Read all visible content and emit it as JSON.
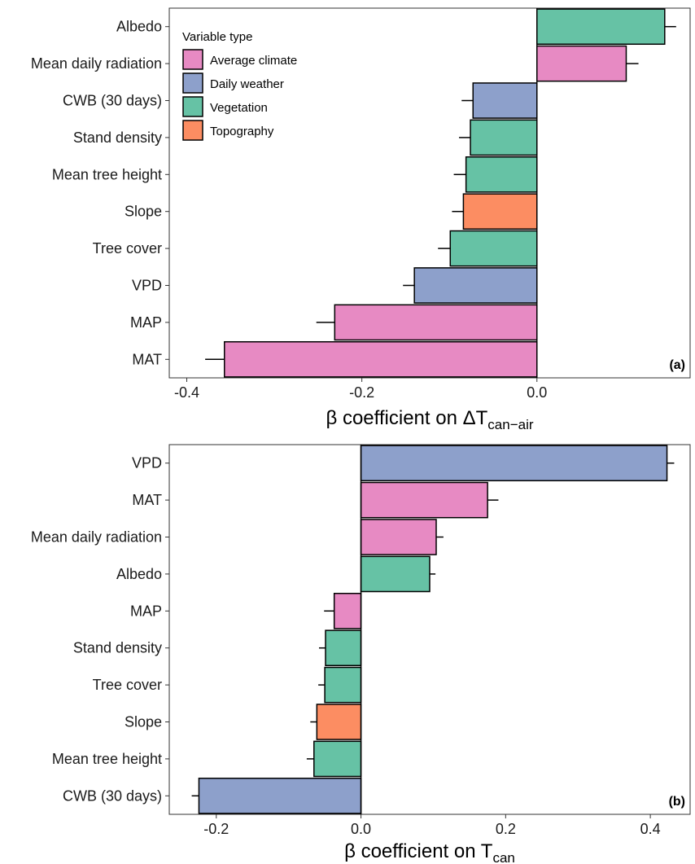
{
  "colors": {
    "Average climate": "#e78ac3",
    "Daily weather": "#8da0cb",
    "Vegetation": "#66c2a5",
    "Topography": "#fc8d62"
  },
  "legend": {
    "title": "Variable type",
    "entries": [
      "Average climate",
      "Daily weather",
      "Vegetation",
      "Topography"
    ]
  },
  "chart_data": [
    {
      "type": "bar",
      "orientation": "horizontal",
      "panel_label": "(a)",
      "xlabel_parts": [
        "β coefficient on ΔT",
        "can−air"
      ],
      "xlim": [
        -0.42,
        0.175
      ],
      "xticks": [
        -0.4,
        -0.2,
        0.0
      ],
      "xtick_labels": [
        "-0.4",
        "-0.2",
        "0.0"
      ],
      "legend_position": "top-left",
      "categories": [
        "Albedo",
        "Mean daily radiation",
        "CWB (30 days)",
        "Stand density",
        "Mean tree height",
        "Slope",
        "Tree cover",
        "VPD",
        "MAP",
        "MAT"
      ],
      "types": [
        "Vegetation",
        "Average climate",
        "Daily weather",
        "Vegetation",
        "Vegetation",
        "Topography",
        "Vegetation",
        "Daily weather",
        "Average climate",
        "Average climate"
      ],
      "values": [
        0.146,
        0.102,
        -0.073,
        -0.076,
        -0.081,
        -0.084,
        -0.099,
        -0.14,
        -0.231,
        -0.357
      ],
      "errors": [
        0.013,
        0.014,
        0.013,
        0.013,
        0.014,
        0.013,
        0.014,
        0.013,
        0.021,
        0.022
      ]
    },
    {
      "type": "bar",
      "orientation": "horizontal",
      "panel_label": "(b)",
      "xlabel_parts": [
        "β coefficient on T",
        "can"
      ],
      "xlim": [
        -0.265,
        0.455
      ],
      "xticks": [
        -0.2,
        0.0,
        0.2,
        0.4
      ],
      "xtick_labels": [
        "-0.2",
        "0.0",
        "0.2",
        "0.4"
      ],
      "categories": [
        "VPD",
        "MAT",
        "Mean daily radiation",
        "Albedo",
        "MAP",
        "Stand density",
        "Tree cover",
        "Slope",
        "Mean tree height",
        "CWB (30 days)"
      ],
      "types": [
        "Daily weather",
        "Average climate",
        "Average climate",
        "Vegetation",
        "Average climate",
        "Vegetation",
        "Vegetation",
        "Topography",
        "Vegetation",
        "Daily weather"
      ],
      "values": [
        0.423,
        0.175,
        0.104,
        0.095,
        -0.037,
        -0.049,
        -0.05,
        -0.061,
        -0.065,
        -0.224
      ],
      "errors": [
        0.01,
        0.015,
        0.01,
        0.008,
        0.014,
        0.009,
        0.009,
        0.009,
        0.01,
        0.01
      ]
    }
  ]
}
